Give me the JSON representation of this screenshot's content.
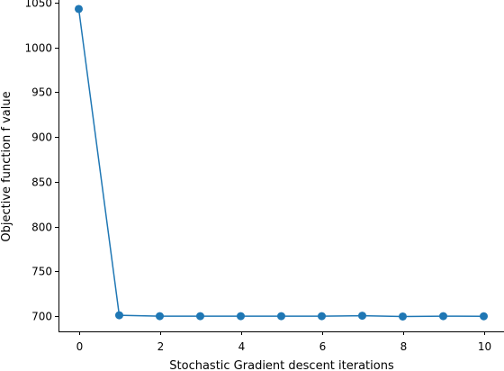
{
  "chart_data": {
    "type": "line",
    "title": "",
    "xlabel": "Stochastic Gradient descent iterations",
    "ylabel": "Objective function f value",
    "xlim": [
      -0.5,
      10.5
    ],
    "ylim": [
      683,
      1053
    ],
    "xticks": [
      0,
      2,
      4,
      6,
      8,
      10
    ],
    "yticks": [
      700,
      750,
      800,
      850,
      900,
      950,
      1000,
      1050
    ],
    "grid": false,
    "marker": "circle",
    "series": [
      {
        "color": "#1f77b4",
        "x": [
          0,
          1,
          2,
          3,
          4,
          5,
          6,
          7,
          8,
          9,
          10
        ],
        "y": [
          1043,
          701,
          700,
          700,
          700,
          700,
          700,
          700.5,
          699.6,
          700,
          699.9
        ]
      }
    ]
  }
}
